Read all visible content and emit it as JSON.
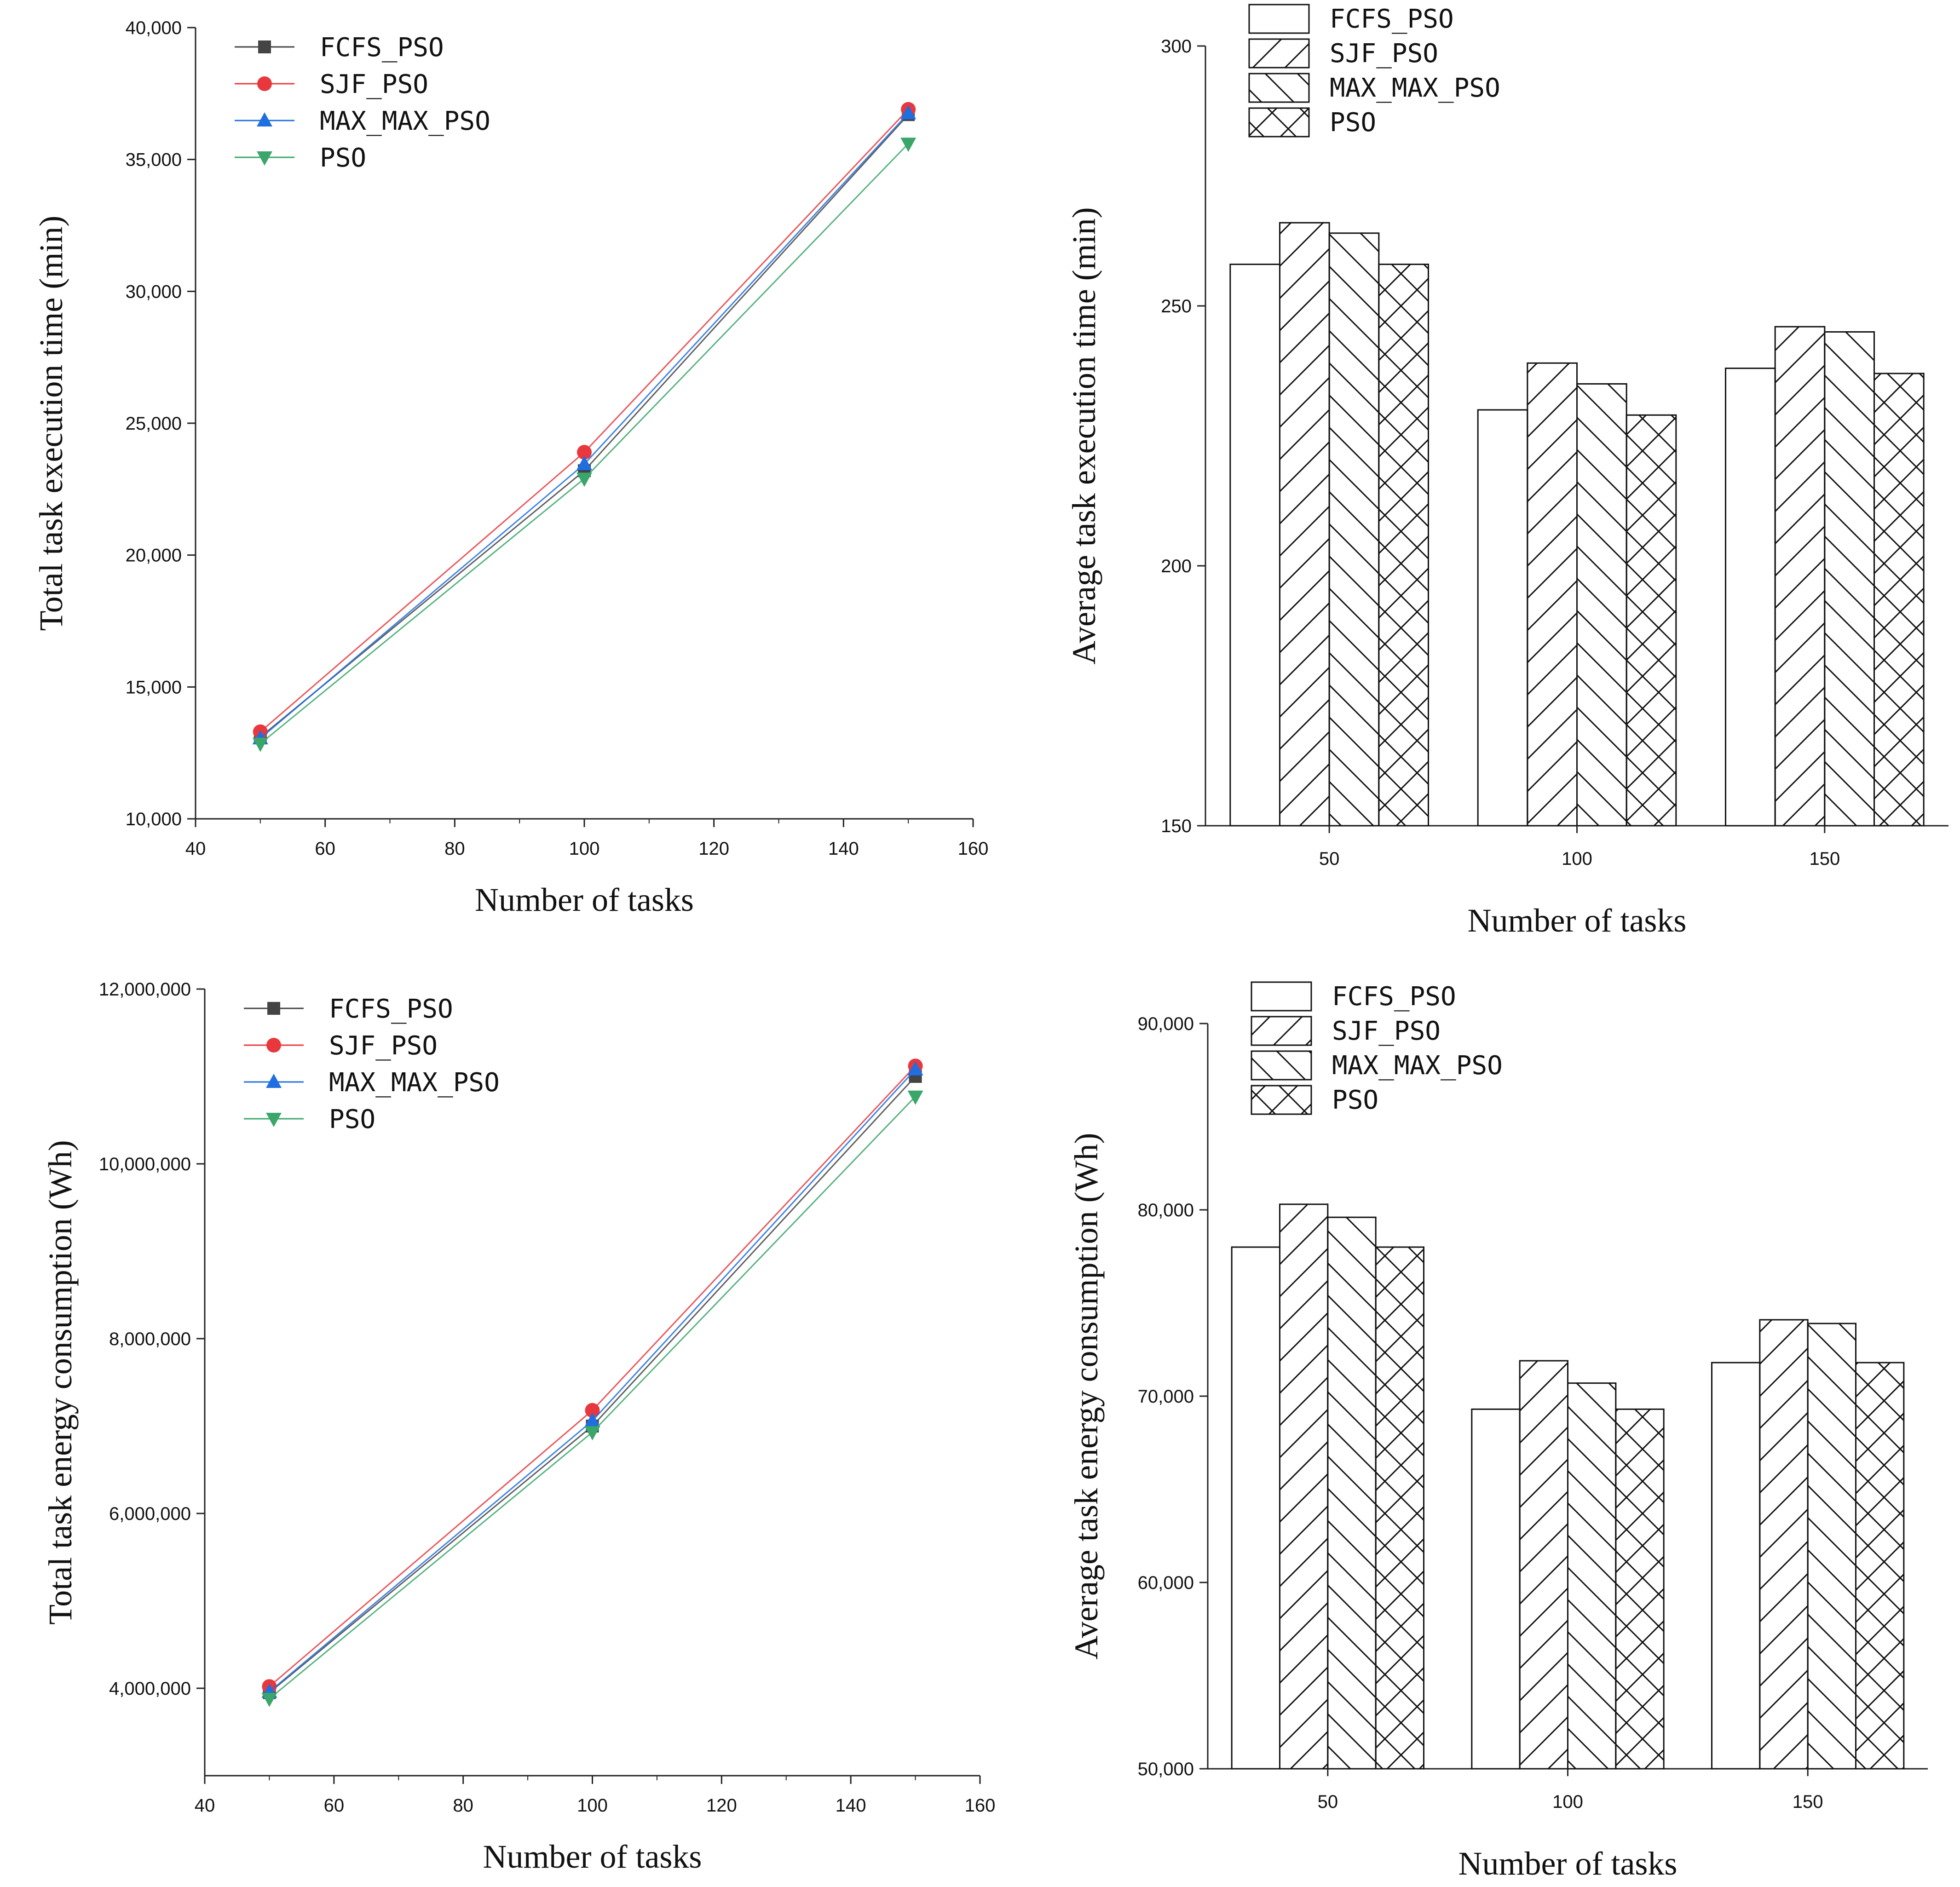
{
  "chart_data": [
    {
      "type": "line",
      "xlabel": "Number of tasks",
      "ylabel": "Total task execution time (min)",
      "x": [
        50,
        100,
        150
      ],
      "xlim": [
        40,
        160
      ],
      "ylim": [
        10000,
        40000
      ],
      "xticks": [
        "40",
        "60",
        "80",
        "100",
        "120",
        "140",
        "160"
      ],
      "yticks": [
        "10,000",
        "15,000",
        "20,000",
        "25,000",
        "30,000",
        "35,000",
        "40,000"
      ],
      "legend_position": "top-left",
      "series": [
        {
          "name": "FCFS_PSO",
          "values": [
            13100,
            23200,
            36700
          ],
          "color": "#444444",
          "marker": "square"
        },
        {
          "name": "SJF_PSO",
          "values": [
            13300,
            23900,
            36900
          ],
          "color": "#e8383d",
          "marker": "circle"
        },
        {
          "name": "MAX_MAX_PSO",
          "values": [
            13050,
            23450,
            36750
          ],
          "color": "#1f6fe0",
          "marker": "triangle-up"
        },
        {
          "name": "PSO",
          "values": [
            12850,
            22900,
            35600
          ],
          "color": "#3aa66a",
          "marker": "triangle-down"
        }
      ]
    },
    {
      "type": "bar",
      "xlabel": "Number of tasks",
      "ylabel": "Average task execution time (min)",
      "categories": [
        "50",
        "100",
        "150"
      ],
      "ylim": [
        150,
        300
      ],
      "yticks": [
        "150",
        "200",
        "250",
        "300"
      ],
      "legend_position": "top-left",
      "series": [
        {
          "name": "FCFS_PSO",
          "values": [
            258,
            230,
            238
          ],
          "pattern": "none"
        },
        {
          "name": "SJF_PSO",
          "values": [
            266,
            239,
            246
          ],
          "pattern": "forward-diagonal"
        },
        {
          "name": "MAX_MAX_PSO",
          "values": [
            264,
            235,
            245
          ],
          "pattern": "backward-diagonal"
        },
        {
          "name": "PSO",
          "values": [
            258,
            229,
            237
          ],
          "pattern": "cross-hatch"
        }
      ]
    },
    {
      "type": "line",
      "xlabel": "Number of tasks",
      "ylabel": "Total task energy consumption (Wh)",
      "x": [
        50,
        100,
        150
      ],
      "xlim": [
        40,
        160
      ],
      "ylim": [
        3000000,
        12000000
      ],
      "xticks": [
        "40",
        "60",
        "80",
        "100",
        "120",
        "140",
        "160"
      ],
      "yticks": [
        "4,000,000",
        "6,000,000",
        "8,000,000",
        "10,000,000",
        "12,000,000"
      ],
      "legend_position": "top-left",
      "series": [
        {
          "name": "FCFS_PSO",
          "values": [
            3950000,
            7000000,
            11000000
          ],
          "color": "#444444",
          "marker": "square"
        },
        {
          "name": "SJF_PSO",
          "values": [
            4020000,
            7180000,
            11120000
          ],
          "color": "#e8383d",
          "marker": "circle"
        },
        {
          "name": "MAX_MAX_PSO",
          "values": [
            3960000,
            7060000,
            11080000
          ],
          "color": "#1f6fe0",
          "marker": "triangle-up"
        },
        {
          "name": "PSO",
          "values": [
            3880000,
            6930000,
            10770000
          ],
          "color": "#3aa66a",
          "marker": "triangle-down"
        }
      ]
    },
    {
      "type": "bar",
      "xlabel": "Number of tasks",
      "ylabel": "Average  task  energy  consumption  (Wh)",
      "categories": [
        "50",
        "100",
        "150"
      ],
      "ylim": [
        50000,
        90000
      ],
      "yticks": [
        "50,000",
        "60,000",
        "70,000",
        "80,000",
        "90,000"
      ],
      "legend_position": "top-left",
      "series": [
        {
          "name": "FCFS_PSO",
          "values": [
            78000,
            69300,
            71800
          ],
          "pattern": "none"
        },
        {
          "name": "SJF_PSO",
          "values": [
            80300,
            71900,
            74100
          ],
          "pattern": "forward-diagonal"
        },
        {
          "name": "MAX_MAX_PSO",
          "values": [
            79600,
            70700,
            73900
          ],
          "pattern": "backward-diagonal"
        },
        {
          "name": "PSO",
          "values": [
            78000,
            69300,
            71800
          ],
          "pattern": "cross-hatch"
        }
      ]
    }
  ]
}
